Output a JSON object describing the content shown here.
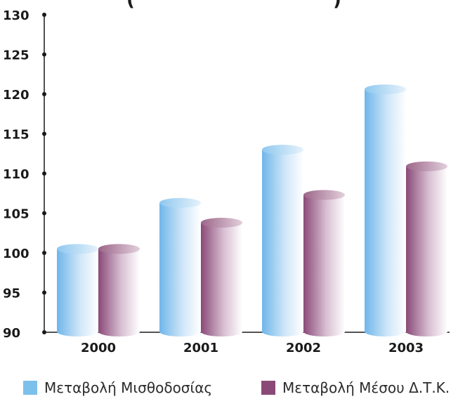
{
  "chart_data": {
    "type": "bar",
    "title": "(",
    "title_right": ")",
    "categories": [
      "2000",
      "2001",
      "2002",
      "2003"
    ],
    "series": [
      {
        "name": "Μεταβολή Μισθοδοσίας",
        "values": [
          100.5,
          106.3,
          113.0,
          120.6
        ],
        "color": "#7cc0ec"
      },
      {
        "name": "Μεταβολή Μέσου Δ.Τ.Κ.",
        "values": [
          100.5,
          103.8,
          107.3,
          110.9
        ],
        "color": "#8a4a78"
      }
    ],
    "ylim": [
      90,
      130
    ],
    "yticks": [
      "90",
      "95",
      "100",
      "105",
      "110",
      "115",
      "120",
      "125",
      "130"
    ],
    "grid": false,
    "legend_position": "bottom"
  }
}
